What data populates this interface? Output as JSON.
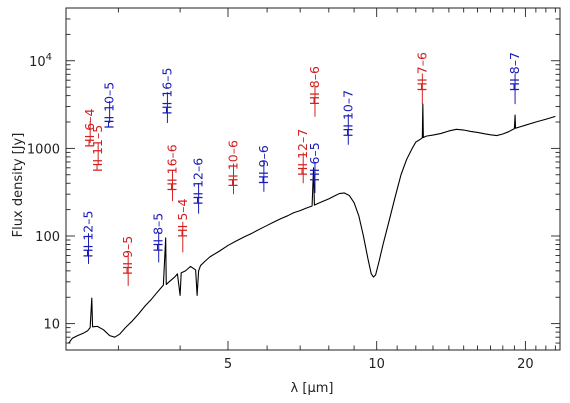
{
  "chart_data": {
    "type": "line",
    "xlabel": "λ [μm]",
    "ylabel": "Flux density [Jy]",
    "x_scale": "log",
    "y_scale": "log",
    "xlim": [
      2.35,
      23.5
    ],
    "ylim": [
      5,
      40000
    ],
    "x_ticks": [
      {
        "value": 5,
        "label": "5"
      },
      {
        "value": 10,
        "label": "10"
      },
      {
        "value": 20,
        "label": "20"
      }
    ],
    "y_ticks": [
      {
        "value": 10,
        "label": "10"
      },
      {
        "value": 100,
        "label": "100"
      },
      {
        "value": 1000,
        "label": "1000"
      },
      {
        "value": 10000,
        "label": "10",
        "sup": "4"
      }
    ],
    "grid": false,
    "colors": {
      "red": "#d42020",
      "blue": "#1a1ab8",
      "line": "#000000",
      "axis": "#222222"
    },
    "series": [
      {
        "points": [
          [
            2.38,
            6.0
          ],
          [
            2.42,
            6.8
          ],
          [
            2.48,
            7.3
          ],
          [
            2.55,
            7.8
          ],
          [
            2.6,
            8.3
          ],
          [
            2.63,
            9.0
          ],
          [
            2.65,
            19.5
          ],
          [
            2.66,
            9.2
          ],
          [
            2.72,
            9.3
          ],
          [
            2.8,
            8.5
          ],
          [
            2.88,
            7.3
          ],
          [
            2.95,
            7.0
          ],
          [
            3.02,
            7.6
          ],
          [
            3.1,
            9.0
          ],
          [
            3.2,
            10.7
          ],
          [
            3.3,
            13.0
          ],
          [
            3.4,
            16.0
          ],
          [
            3.5,
            19.0
          ],
          [
            3.6,
            23.0
          ],
          [
            3.7,
            27.5
          ],
          [
            3.74,
            95.0
          ],
          [
            3.75,
            28.0
          ],
          [
            3.8,
            30.0
          ],
          [
            3.9,
            34.0
          ],
          [
            3.95,
            37.0
          ],
          [
            4.0,
            21.0
          ],
          [
            4.02,
            38.0
          ],
          [
            4.1,
            40.0
          ],
          [
            4.2,
            45.0
          ],
          [
            4.3,
            41.0
          ],
          [
            4.33,
            21.0
          ],
          [
            4.36,
            40.0
          ],
          [
            4.4,
            46.0
          ],
          [
            4.5,
            52.0
          ],
          [
            4.6,
            58.0
          ],
          [
            4.8,
            67.0
          ],
          [
            5.0,
            78.0
          ],
          [
            5.2,
            88.0
          ],
          [
            5.4,
            98.0
          ],
          [
            5.6,
            108.0
          ],
          [
            5.8,
            120.0
          ],
          [
            6.0,
            132.0
          ],
          [
            6.2,
            145.0
          ],
          [
            6.4,
            158.0
          ],
          [
            6.6,
            170.0
          ],
          [
            6.8,
            185.0
          ],
          [
            7.0,
            195.0
          ],
          [
            7.2,
            208.0
          ],
          [
            7.4,
            220.0
          ],
          [
            7.45,
            600.0
          ],
          [
            7.48,
            225.0
          ],
          [
            7.6,
            235.0
          ],
          [
            7.8,
            250.0
          ],
          [
            8.0,
            265.0
          ],
          [
            8.2,
            285.0
          ],
          [
            8.4,
            305.0
          ],
          [
            8.6,
            310.0
          ],
          [
            8.8,
            290.0
          ],
          [
            9.0,
            240.0
          ],
          [
            9.2,
            170.0
          ],
          [
            9.4,
            100.0
          ],
          [
            9.6,
            55.0
          ],
          [
            9.75,
            37.0
          ],
          [
            9.85,
            34.0
          ],
          [
            9.95,
            36.0
          ],
          [
            10.1,
            50.0
          ],
          [
            10.3,
            80.0
          ],
          [
            10.6,
            150.0
          ],
          [
            10.9,
            280.0
          ],
          [
            11.2,
            500.0
          ],
          [
            11.5,
            750.0
          ],
          [
            11.8,
            1000.0
          ],
          [
            12.0,
            1180.0
          ],
          [
            12.2,
            1250.0
          ],
          [
            12.37,
            1320.0
          ],
          [
            12.4,
            3200.0
          ],
          [
            12.43,
            1330.0
          ],
          [
            12.6,
            1380.0
          ],
          [
            13.0,
            1420.0
          ],
          [
            13.5,
            1480.0
          ],
          [
            14.0,
            1580.0
          ],
          [
            14.5,
            1650.0
          ],
          [
            15.0,
            1620.0
          ],
          [
            15.5,
            1560.0
          ],
          [
            16.0,
            1520.0
          ],
          [
            16.5,
            1470.0
          ],
          [
            17.0,
            1430.0
          ],
          [
            17.5,
            1400.0
          ],
          [
            18.0,
            1460.0
          ],
          [
            18.5,
            1550.0
          ],
          [
            19.0,
            1680.0
          ],
          [
            19.06,
            2400.0
          ],
          [
            19.1,
            1700.0
          ],
          [
            19.5,
            1760.0
          ],
          [
            20.0,
            1840.0
          ],
          [
            21.0,
            2000.0
          ],
          [
            22.0,
            2150.0
          ],
          [
            23.0,
            2320.0
          ]
        ]
      }
    ],
    "line_labels": [
      {
        "text": "HI 6–4",
        "color": "red",
        "wavelength": 2.63,
        "label_y": 1700,
        "tick_y": 1150,
        "tick_len": 0.25
      },
      {
        "text": "HI 11–5",
        "color": "red",
        "wavelength": 2.73,
        "label_y": 1000,
        "tick_y": 640,
        "tick_len": 0.25
      },
      {
        "text": "HI 10–5",
        "color": "blue",
        "wavelength": 2.88,
        "label_y": 3100,
        "tick_y": 1950,
        "tick_len": 0.25
      },
      {
        "text": "HI 12–5",
        "color": "blue",
        "wavelength": 2.61,
        "label_y": 105,
        "tick_y": 48,
        "tick_len": 0.35
      },
      {
        "text": "HI 9–5",
        "color": "red",
        "wavelength": 3.14,
        "label_y": 60,
        "tick_y": 27,
        "tick_len": 0.35
      },
      {
        "text": "HI 8–5",
        "color": "blue",
        "wavelength": 3.62,
        "label_y": 110,
        "tick_y": 50,
        "tick_len": 0.35
      },
      {
        "text": "HI 16–5",
        "color": "blue",
        "wavelength": 3.77,
        "label_y": 4500,
        "tick_y": 1950,
        "tick_len": 0.35
      },
      {
        "text": "HI 16–6",
        "color": "red",
        "wavelength": 3.86,
        "label_y": 600,
        "tick_y": 250,
        "tick_len": 0.35
      },
      {
        "text": "HI 5–4",
        "color": "red",
        "wavelength": 4.05,
        "label_y": 160,
        "tick_y": 65,
        "tick_len": 0.35
      },
      {
        "text": "HI 12–6",
        "color": "blue",
        "wavelength": 4.36,
        "label_y": 420,
        "tick_y": 180,
        "tick_len": 0.35
      },
      {
        "text": "HI 10–6",
        "color": "red",
        "wavelength": 5.13,
        "label_y": 670,
        "tick_y": 300,
        "tick_len": 0.35
      },
      {
        "text": "HI 9–6",
        "color": "blue",
        "wavelength": 5.91,
        "label_y": 650,
        "tick_y": 320,
        "tick_len": 0.35
      },
      {
        "text": "HI 12–7",
        "color": "red",
        "wavelength": 7.1,
        "label_y": 900,
        "tick_y": 400,
        "tick_len": 0.35
      },
      {
        "text": "HI 6–5",
        "color": "blue",
        "wavelength": 7.5,
        "label_y": 700,
        "tick_y": 310,
        "tick_len": 0.35
      },
      {
        "text": "HI 8–6",
        "color": "red",
        "wavelength": 7.5,
        "label_y": 5200,
        "tick_y": 2300,
        "tick_len": 0.35
      },
      {
        "text": "HI 10–7",
        "color": "blue",
        "wavelength": 8.76,
        "label_y": 2500,
        "tick_y": 1100,
        "tick_len": 0.35
      },
      {
        "text": "HI 7–6",
        "color": "red",
        "wavelength": 12.37,
        "label_y": 7500,
        "tick_y": 3200,
        "tick_len": 0.35
      },
      {
        "text": "HI 8–7",
        "color": "blue",
        "wavelength": 19.06,
        "label_y": 7500,
        "tick_y": 3200,
        "tick_len": 0.35
      }
    ]
  }
}
